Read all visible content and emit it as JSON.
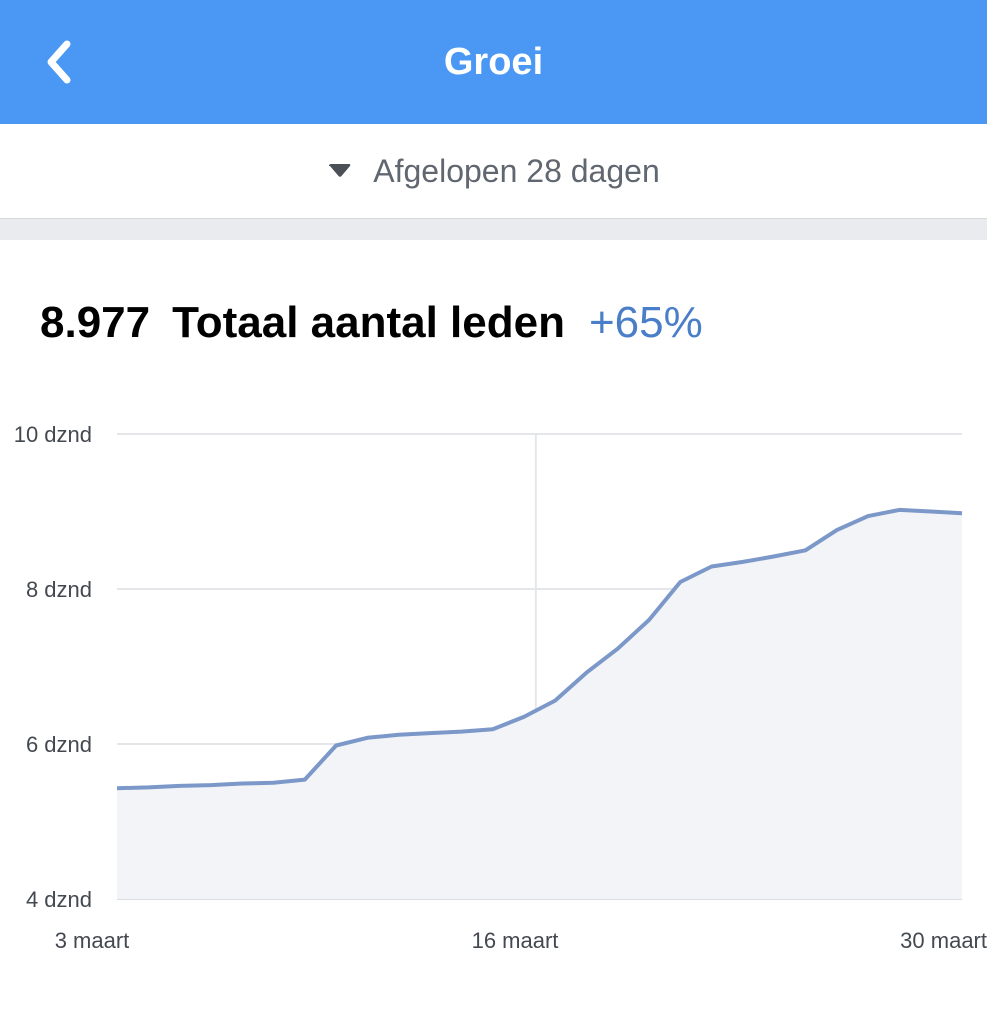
{
  "header": {
    "title": "Groei",
    "back_icon": "chevron-left-icon"
  },
  "filter": {
    "label": "Afgelopen 28 dagen",
    "icon": "caret-down-icon"
  },
  "summary": {
    "value": "8.977",
    "label": "Totaal aantal leden",
    "change": "+65%"
  },
  "colors": {
    "header_bg": "#4a98f4",
    "line": "#7b98c9",
    "fill": "#f3f4f8",
    "change": "#4a7ec9"
  },
  "chart_data": {
    "type": "area",
    "x_labels": [
      "3 maart",
      "16 maart",
      "30 maart"
    ],
    "y_ticks": [
      "4 dznd",
      "6 dznd",
      "8 dznd",
      "10 dznd"
    ],
    "ylim": [
      4000,
      10000
    ],
    "grid": true,
    "series": [
      {
        "x": [
          "3 maart",
          "4 maart",
          "5 maart",
          "6 maart",
          "7 maart",
          "8 maart",
          "9 maart",
          "10 maart",
          "11 maart",
          "12 maart",
          "13 maart",
          "14 maart",
          "15 maart",
          "16 maart",
          "17 maart",
          "18 maart",
          "19 maart",
          "20 maart",
          "21 maart",
          "22 maart",
          "23 maart",
          "24 maart",
          "25 maart",
          "26 maart",
          "27 maart",
          "28 maart",
          "29 maart",
          "30 maart"
        ],
        "values": [
          5430,
          5440,
          5460,
          5470,
          5490,
          5500,
          5540,
          5980,
          6080,
          6120,
          6140,
          6160,
          6190,
          6350,
          6560,
          6920,
          7230,
          7600,
          8090,
          8290,
          8350,
          8420,
          8500,
          8760,
          8940,
          9020,
          9000,
          8977
        ]
      }
    ]
  }
}
